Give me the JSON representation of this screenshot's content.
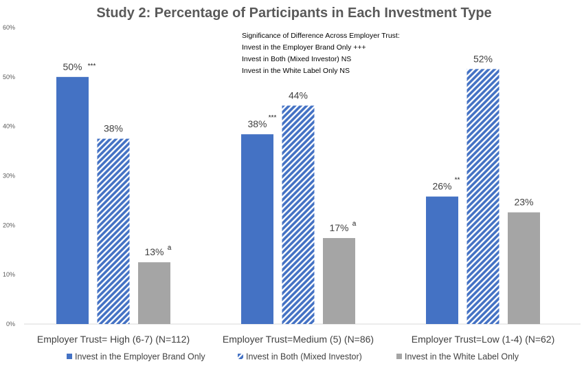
{
  "chart_data": {
    "type": "bar",
    "title": "Study 2: Percentage of Participants in Each Investment Type",
    "xlabel": "",
    "ylabel": "",
    "categories": [
      "Employer Trust= High (6-7) (N=112)",
      "Employer Trust=Medium (5) (N=86)",
      "Employer Trust=Low (1-4) (N=62)"
    ],
    "ylim": [
      0,
      60
    ],
    "yticks": [
      "0%",
      "10%",
      "20%",
      "30%",
      "40%",
      "50%",
      "60%"
    ],
    "grid": false,
    "legend_position": "bottom",
    "series": [
      {
        "name": "Invest in the Employer Brand Only",
        "color": "#4472C4",
        "pattern": "solid",
        "values": [
          50,
          38.4,
          25.8
        ],
        "labels": [
          "50%",
          "38%",
          "26%"
        ],
        "marks": [
          "***",
          "***",
          "**"
        ]
      },
      {
        "name": "Invest in Both (Mixed Investor)",
        "color": "#4472C4",
        "pattern": "diagonal-stripes",
        "values": [
          37.5,
          44.2,
          51.6
        ],
        "labels": [
          "38%",
          "44%",
          "52%"
        ],
        "marks": [
          "",
          "",
          ""
        ]
      },
      {
        "name": "Invest in the White Label Only",
        "color": "#A5A5A5",
        "pattern": "solid",
        "values": [
          12.5,
          17.4,
          22.6
        ],
        "labels": [
          "13%",
          "17%",
          "23%"
        ],
        "marks": [
          "a",
          "a",
          ""
        ]
      }
    ],
    "annotations": [
      "Significance of Difference Across Employer Trust:",
      "Invest in the Employer Brand Only +++",
      "Invest in Both (Mixed Investor) NS",
      "Invest in the White Label Only  NS"
    ]
  }
}
